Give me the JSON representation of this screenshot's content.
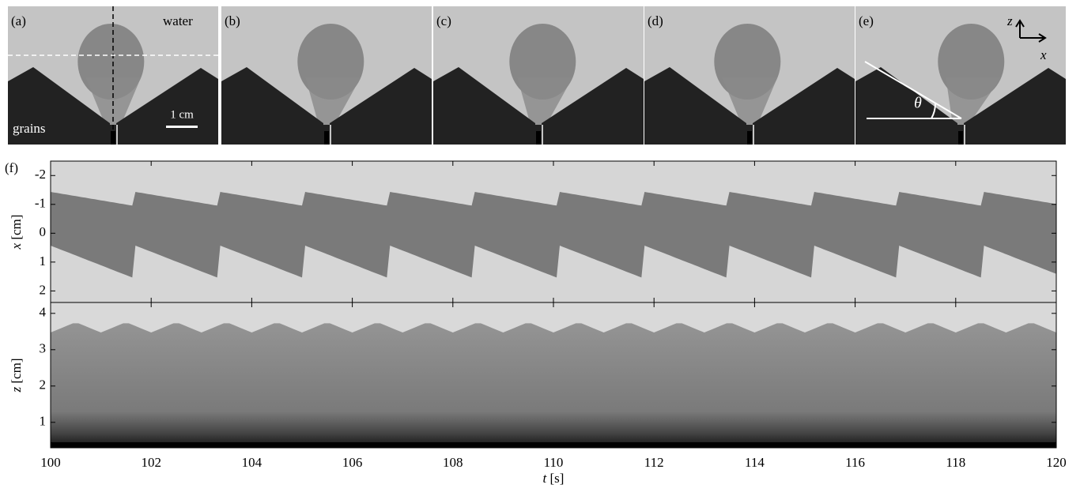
{
  "panels": [
    {
      "label": "(a)",
      "medium": "water",
      "bed": "grains",
      "scale_bar": "1 cm"
    },
    {
      "label": "(b)"
    },
    {
      "label": "(c)"
    },
    {
      "label": "(d)"
    },
    {
      "label": "(e)",
      "axis_z": "z",
      "axis_x": "x",
      "angle": "θ"
    }
  ],
  "plot": {
    "label": "(f)",
    "xlim": [
      100,
      120
    ],
    "xticks": [
      100,
      102,
      104,
      106,
      108,
      110,
      112,
      114,
      116,
      118,
      120
    ],
    "xlabel": {
      "symbol": "t",
      "unit": "[s]"
    },
    "upper": {
      "ylim": [
        -2.5,
        2.4
      ],
      "yticks": [
        -2,
        -1,
        0,
        1,
        2
      ],
      "ylabel": {
        "symbol": "x",
        "unit": "[cm]"
      }
    },
    "lower": {
      "ylim": [
        0.3,
        4.3
      ],
      "yticks": [
        1,
        2,
        3,
        4
      ],
      "ylabel": {
        "symbol": "z",
        "unit": "[cm]"
      }
    }
  }
}
